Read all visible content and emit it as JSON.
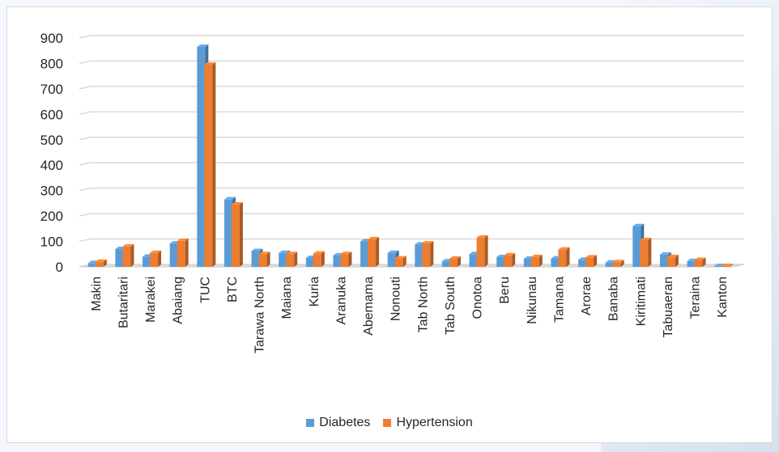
{
  "chart_data": {
    "type": "bar",
    "categories": [
      "Makin",
      "Butaritari",
      "Marakei",
      "Abaiang",
      "TUC",
      "BTC",
      "Tarawa North",
      "Maiana",
      "Kuria",
      "Aranuka",
      "Abemama",
      "Nonouti",
      "Tab North",
      "Tab South",
      "Onotoa",
      "Beru",
      "Nikunau",
      "Tamana",
      "Arorae",
      "Banaba",
      "Kiritimati",
      "Tabuaeran",
      "Teraina",
      "Kanton"
    ],
    "series": [
      {
        "name": "Diabetes",
        "color": "#5b9bd5",
        "values": [
          15,
          70,
          40,
          92,
          865,
          265,
          62,
          55,
          35,
          45,
          100,
          55,
          88,
          22,
          50,
          38,
          32,
          33,
          28,
          17,
          160,
          48,
          23,
          3
        ]
      },
      {
        "name": "Hypertension",
        "color": "#ed7d31",
        "values": [
          20,
          80,
          55,
          102,
          795,
          245,
          50,
          50,
          52,
          50,
          108,
          33,
          92,
          32,
          115,
          45,
          38,
          68,
          37,
          18,
          105,
          38,
          27,
          3
        ]
      }
    ],
    "yticks": [
      0,
      100,
      200,
      300,
      400,
      500,
      600,
      700,
      800,
      900
    ],
    "ylim": [
      0,
      900
    ],
    "grid": true,
    "legend": "bottom",
    "style": "3d-clustered-column"
  }
}
